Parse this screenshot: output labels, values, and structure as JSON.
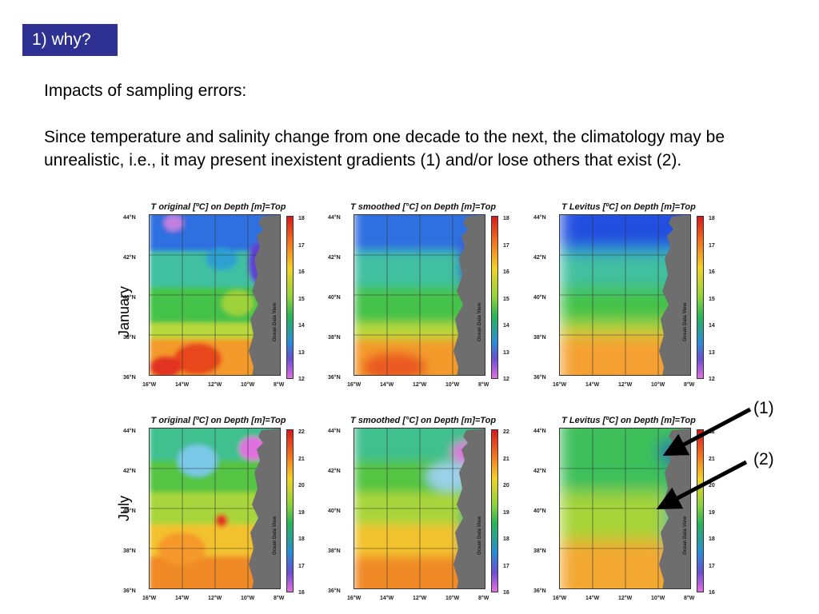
{
  "slide": {
    "badge": "1)  why?",
    "heading": "Impacts of sampling errors:",
    "paragraph": "Since temperature and salinity change from one decade to the next, the climatology may be unrealistic, i.e., it may present inexistent gradients (1) and/or lose others that exist (2).",
    "row_labels": [
      "January",
      "July"
    ],
    "annotations": [
      "(1)",
      "(2)"
    ]
  },
  "chart_data": [
    {
      "type": "heatmap",
      "title": "T original [ºC] on Depth [m]=Top",
      "row": "January",
      "colorbar_ticks": [
        "18",
        "17",
        "16",
        "15",
        "14",
        "13",
        "12"
      ],
      "yticks": [
        "44°N",
        "42°N",
        "40°N",
        "38°N",
        "36°N"
      ],
      "xticks": [
        "16°W",
        "14°W",
        "12°W",
        "10°W",
        "8°W"
      ],
      "watermark": "Ocean Data View"
    },
    {
      "type": "heatmap",
      "title": "T smoothed [°C] on Depth [m]=Top",
      "row": "January",
      "colorbar_ticks": [
        "18",
        "17",
        "16",
        "15",
        "14",
        "13",
        "12"
      ],
      "yticks": [
        "44°N",
        "42°N",
        "40°N",
        "38°N",
        "36°N"
      ],
      "xticks": [
        "16°W",
        "14°W",
        "12°W",
        "10°W",
        "8°W"
      ],
      "watermark": "Ocean Data View"
    },
    {
      "type": "heatmap",
      "title": "T Levitus [ºC] on Depth [m]=Top",
      "row": "January",
      "colorbar_ticks": [
        "18",
        "17",
        "16",
        "15",
        "14",
        "13",
        "12"
      ],
      "yticks": [
        "44°N",
        "42°N",
        "40°N",
        "38°N",
        "36°N"
      ],
      "xticks": [
        "16°W",
        "14°W",
        "12°W",
        "10°W",
        "8°W"
      ],
      "watermark": "Ocean Data View"
    },
    {
      "type": "heatmap",
      "title": "T original [ºC] on Depth [m]=Top",
      "row": "July",
      "colorbar_ticks": [
        "22",
        "21",
        "20",
        "19",
        "18",
        "17",
        "16"
      ],
      "yticks": [
        "44°N",
        "42°N",
        "40°N",
        "38°N",
        "36°N"
      ],
      "xticks": [
        "16°W",
        "14°W",
        "12°W",
        "10°W",
        "8°W"
      ],
      "watermark": "Ocean Data View"
    },
    {
      "type": "heatmap",
      "title": "T smoothed [°C] on Depth [m]=Top",
      "row": "July",
      "colorbar_ticks": [
        "22",
        "21",
        "20",
        "19",
        "18",
        "17",
        "16"
      ],
      "yticks": [
        "44°N",
        "42°N",
        "40°N",
        "38°N",
        "36°N"
      ],
      "xticks": [
        "16°W",
        "14°W",
        "12°W",
        "10°W",
        "8°W"
      ],
      "watermark": "Ocean Data View"
    },
    {
      "type": "heatmap",
      "title": "T Levitus [ºC] on Depth [m]=Top",
      "row": "July",
      "colorbar_ticks": [
        "22",
        "21",
        "20",
        "19",
        "18",
        "17",
        "16"
      ],
      "yticks": [
        "44°N",
        "42°N",
        "40°N",
        "38°N",
        "36°N"
      ],
      "xticks": [
        "16°W",
        "14°W",
        "12°W",
        "10°W",
        "8°W"
      ],
      "watermark": "Ocean Data View"
    }
  ]
}
